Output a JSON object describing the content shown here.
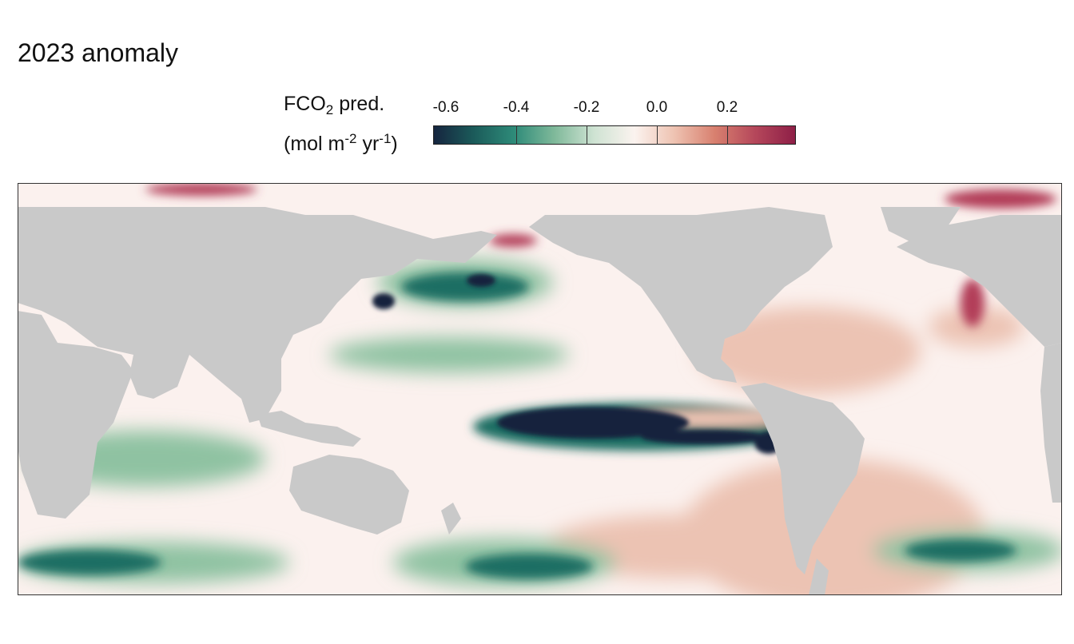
{
  "title": "2023 anomaly",
  "legend": {
    "label_line1_main": "FCO",
    "label_line1_sub": "2",
    "label_line1_rest": " pred.",
    "label_line2_a": "(mol m",
    "label_line2_sup1": "-2",
    "label_line2_b": " yr",
    "label_line2_sup2": "-1",
    "label_line2_c": ")",
    "ticks": [
      "-0.6",
      "-0.4",
      "-0.2",
      "0.0",
      "0.2"
    ],
    "colors": [
      "#16253f",
      "#1b5b5a",
      "#2e8b79",
      "#7fb99a",
      "#cfe3d3",
      "#fbf3ef",
      "#eec2b1",
      "#d8806f",
      "#b5475b",
      "#8e1f47"
    ]
  },
  "colors": {
    "land": "#c9c9c9",
    "ocean_neutral": "#fbf1ee",
    "strong_negative": "#12243d",
    "mid_negative": "#1f6e63",
    "weak_negative": "#8fc2a2",
    "weak_positive": "#ecc3b3",
    "strong_positive": "#b23c58"
  }
}
